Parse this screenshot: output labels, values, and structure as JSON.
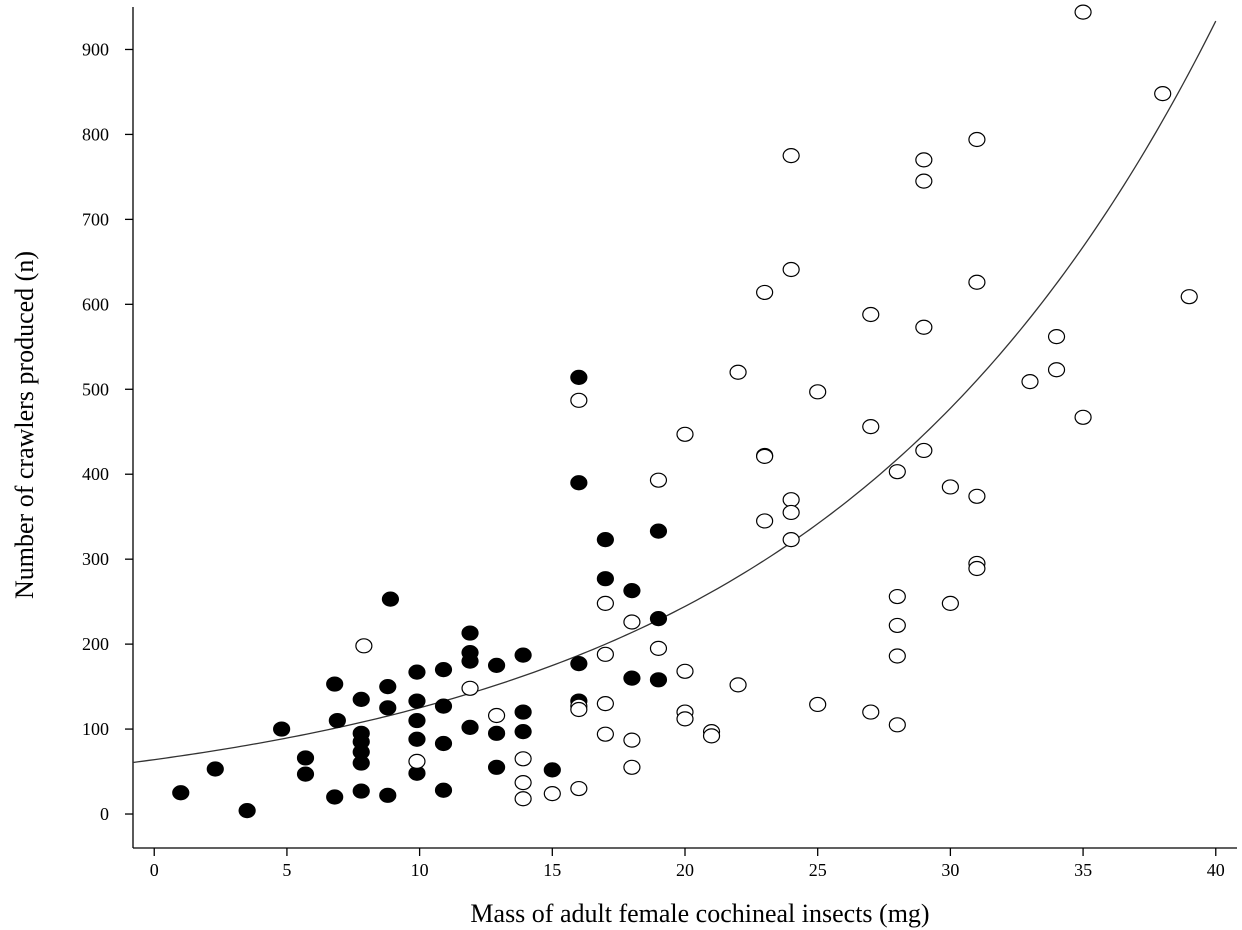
{
  "chart_data": {
    "type": "scatter",
    "title": "",
    "xlabel": "Mass of adult female cochineal insects (mg)",
    "ylabel": "Number of crawlers produced (n)",
    "xlim": [
      -0.8,
      40.8
    ],
    "ylim": [
      -40,
      950
    ],
    "xticks": [
      "0",
      "5",
      "10",
      "15",
      "20",
      "25",
      "30",
      "35",
      "40"
    ],
    "yticks": [
      "0",
      "100",
      "200",
      "300",
      "400",
      "500",
      "600",
      "700",
      "800",
      "900"
    ],
    "grid": false,
    "legend": "none",
    "series": [
      {
        "marker": "filled-circle",
        "color": "#000000",
        "points": [
          [
            1,
            25
          ],
          [
            2.3,
            53
          ],
          [
            3.5,
            4
          ],
          [
            4.8,
            100
          ],
          [
            5.7,
            66
          ],
          [
            5.7,
            47
          ],
          [
            6.8,
            153
          ],
          [
            6.9,
            110
          ],
          [
            6.8,
            20
          ],
          [
            7.8,
            135
          ],
          [
            7.8,
            95
          ],
          [
            7.8,
            85
          ],
          [
            7.8,
            73
          ],
          [
            7.8,
            60
          ],
          [
            7.8,
            27
          ],
          [
            8.8,
            150
          ],
          [
            8.8,
            125
          ],
          [
            8.8,
            22
          ],
          [
            8.9,
            253
          ],
          [
            9.9,
            167
          ],
          [
            9.9,
            133
          ],
          [
            9.9,
            110
          ],
          [
            9.9,
            88
          ],
          [
            9.9,
            48
          ],
          [
            10.9,
            170
          ],
          [
            10.9,
            127
          ],
          [
            10.9,
            83
          ],
          [
            10.9,
            28
          ],
          [
            11.9,
            213
          ],
          [
            11.9,
            190
          ],
          [
            11.9,
            180
          ],
          [
            11.9,
            102
          ],
          [
            12.9,
            175
          ],
          [
            12.9,
            95
          ],
          [
            12.9,
            55
          ],
          [
            13.9,
            187
          ],
          [
            13.9,
            120
          ],
          [
            13.9,
            97
          ],
          [
            15,
            52
          ],
          [
            16,
            514
          ],
          [
            16,
            390
          ],
          [
            16,
            177
          ],
          [
            16,
            133
          ],
          [
            17,
            323
          ],
          [
            17,
            277
          ],
          [
            18,
            263
          ],
          [
            18,
            160
          ],
          [
            19,
            333
          ],
          [
            19,
            230
          ],
          [
            19,
            158
          ]
        ]
      },
      {
        "marker": "open-circle",
        "color": "#000000",
        "points": [
          [
            7.9,
            198
          ],
          [
            9.9,
            62
          ],
          [
            11.9,
            148
          ],
          [
            12.9,
            116
          ],
          [
            13.9,
            65
          ],
          [
            13.9,
            37
          ],
          [
            13.9,
            18
          ],
          [
            15,
            24
          ],
          [
            16,
            487
          ],
          [
            16,
            127
          ],
          [
            16,
            123
          ],
          [
            16,
            30
          ],
          [
            17,
            248
          ],
          [
            17,
            188
          ],
          [
            17,
            130
          ],
          [
            17,
            94
          ],
          [
            18,
            226
          ],
          [
            18,
            87
          ],
          [
            18,
            55
          ],
          [
            19,
            393
          ],
          [
            19,
            195
          ],
          [
            20,
            447
          ],
          [
            20,
            168
          ],
          [
            20,
            120
          ],
          [
            20,
            112
          ],
          [
            21,
            97
          ],
          [
            21,
            92
          ],
          [
            22,
            520
          ],
          [
            22,
            152
          ],
          [
            23,
            614
          ],
          [
            23,
            422
          ],
          [
            23,
            421
          ],
          [
            23,
            345
          ],
          [
            24,
            775
          ],
          [
            24,
            641
          ],
          [
            24,
            370
          ],
          [
            24,
            355
          ],
          [
            24,
            323
          ],
          [
            25,
            497
          ],
          [
            25,
            129
          ],
          [
            27,
            588
          ],
          [
            27,
            456
          ],
          [
            27,
            120
          ],
          [
            28,
            403
          ],
          [
            28,
            256
          ],
          [
            28,
            222
          ],
          [
            28,
            186
          ],
          [
            28,
            105
          ],
          [
            29,
            770
          ],
          [
            29,
            745
          ],
          [
            29,
            573
          ],
          [
            29,
            428
          ],
          [
            30,
            385
          ],
          [
            30,
            248
          ],
          [
            31,
            794
          ],
          [
            31,
            626
          ],
          [
            31,
            374
          ],
          [
            31,
            295
          ],
          [
            31,
            289
          ],
          [
            33,
            509
          ],
          [
            34,
            562
          ],
          [
            34,
            523
          ],
          [
            35,
            944
          ],
          [
            35,
            467
          ],
          [
            38,
            848
          ],
          [
            39,
            609
          ]
        ]
      }
    ],
    "fit_curve": {
      "type": "exponential",
      "x_range": [
        -0.8,
        40
      ],
      "a": 64,
      "b": 0.067
    }
  }
}
